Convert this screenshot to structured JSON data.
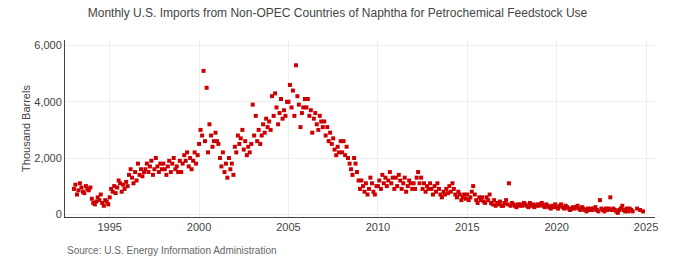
{
  "chart_data": {
    "type": "scatter",
    "title": "Monthly U.S. Imports from Non-OPEC Countries of Naphtha for Petrochemical Feedstock Use",
    "ylabel": "Thousand Barrels",
    "annotations": [
      "Source: U.S. Energy Information Administration"
    ],
    "color": "#cc0000",
    "marker": "square",
    "grid": true,
    "xlim": [
      1992.5,
      2025.5
    ],
    "ylim": [
      -100,
      6200
    ],
    "xticks": [
      1995,
      2000,
      2005,
      2010,
      2015,
      2020,
      2025
    ],
    "yticks": [
      0,
      {
        "value": 2000,
        "label": "2,000"
      },
      {
        "value": 4000,
        "label": "4,000"
      },
      {
        "value": 6000,
        "label": "6,000"
      }
    ],
    "x": [
      1993.0,
      1993.08,
      1993.17,
      1993.25,
      1993.33,
      1993.42,
      1993.5,
      1993.58,
      1993.67,
      1993.75,
      1993.83,
      1993.92,
      1994.0,
      1994.08,
      1994.17,
      1994.25,
      1994.33,
      1994.42,
      1994.5,
      1994.58,
      1994.67,
      1994.75,
      1994.83,
      1994.92,
      1995.0,
      1995.08,
      1995.17,
      1995.25,
      1995.33,
      1995.42,
      1995.5,
      1995.58,
      1995.67,
      1995.75,
      1995.83,
      1995.92,
      1996.0,
      1996.08,
      1996.17,
      1996.25,
      1996.33,
      1996.42,
      1996.5,
      1996.58,
      1996.67,
      1996.75,
      1996.83,
      1996.92,
      1997.0,
      1997.08,
      1997.17,
      1997.25,
      1997.33,
      1997.42,
      1997.5,
      1997.58,
      1997.67,
      1997.75,
      1997.83,
      1997.92,
      1998.0,
      1998.08,
      1998.17,
      1998.25,
      1998.33,
      1998.42,
      1998.5,
      1998.58,
      1998.67,
      1998.75,
      1998.83,
      1998.92,
      1999.0,
      1999.08,
      1999.17,
      1999.25,
      1999.33,
      1999.42,
      1999.5,
      1999.58,
      1999.67,
      1999.75,
      1999.83,
      1999.92,
      2000.0,
      2000.08,
      2000.17,
      2000.25,
      2000.33,
      2000.42,
      2000.5,
      2000.58,
      2000.67,
      2000.75,
      2000.83,
      2000.92,
      2001.0,
      2001.08,
      2001.17,
      2001.25,
      2001.33,
      2001.42,
      2001.5,
      2001.58,
      2001.67,
      2001.75,
      2001.83,
      2001.92,
      2002.0,
      2002.08,
      2002.17,
      2002.25,
      2002.33,
      2002.42,
      2002.5,
      2002.58,
      2002.67,
      2002.75,
      2002.83,
      2002.92,
      2003.0,
      2003.08,
      2003.17,
      2003.25,
      2003.33,
      2003.42,
      2003.5,
      2003.58,
      2003.67,
      2003.75,
      2003.83,
      2003.92,
      2004.0,
      2004.08,
      2004.17,
      2004.25,
      2004.33,
      2004.42,
      2004.5,
      2004.58,
      2004.67,
      2004.75,
      2004.83,
      2004.92,
      2005.0,
      2005.08,
      2005.17,
      2005.25,
      2005.33,
      2005.42,
      2005.5,
      2005.58,
      2005.67,
      2005.75,
      2005.83,
      2005.92,
      2006.0,
      2006.08,
      2006.17,
      2006.25,
      2006.33,
      2006.42,
      2006.5,
      2006.58,
      2006.67,
      2006.75,
      2006.83,
      2006.92,
      2007.0,
      2007.08,
      2007.17,
      2007.25,
      2007.33,
      2007.42,
      2007.5,
      2007.58,
      2007.67,
      2007.75,
      2007.83,
      2007.92,
      2008.0,
      2008.08,
      2008.17,
      2008.25,
      2008.33,
      2008.42,
      2008.5,
      2008.58,
      2008.67,
      2008.75,
      2008.83,
      2008.92,
      2009.0,
      2009.08,
      2009.17,
      2009.25,
      2009.33,
      2009.42,
      2009.5,
      2009.58,
      2009.67,
      2009.75,
      2009.83,
      2009.92,
      2010.0,
      2010.08,
      2010.17,
      2010.25,
      2010.33,
      2010.42,
      2010.5,
      2010.58,
      2010.67,
      2010.75,
      2010.83,
      2010.92,
      2011.0,
      2011.08,
      2011.17,
      2011.25,
      2011.33,
      2011.42,
      2011.5,
      2011.58,
      2011.67,
      2011.75,
      2011.83,
      2011.92,
      2012.0,
      2012.08,
      2012.17,
      2012.25,
      2012.33,
      2012.42,
      2012.5,
      2012.58,
      2012.67,
      2012.75,
      2012.83,
      2012.92,
      2013.0,
      2013.08,
      2013.17,
      2013.25,
      2013.33,
      2013.42,
      2013.5,
      2013.58,
      2013.67,
      2013.75,
      2013.83,
      2013.92,
      2014.0,
      2014.08,
      2014.17,
      2014.25,
      2014.33,
      2014.42,
      2014.5,
      2014.58,
      2014.67,
      2014.75,
      2014.83,
      2014.92,
      2015.0,
      2015.08,
      2015.17,
      2015.25,
      2015.33,
      2015.42,
      2015.5,
      2015.58,
      2015.67,
      2015.75,
      2015.83,
      2015.92,
      2016.0,
      2016.08,
      2016.17,
      2016.25,
      2016.33,
      2016.42,
      2016.5,
      2016.58,
      2016.67,
      2016.75,
      2016.83,
      2016.92,
      2017.0,
      2017.08,
      2017.17,
      2017.25,
      2017.33,
      2017.42,
      2017.5,
      2017.58,
      2017.67,
      2017.75,
      2017.83,
      2017.92,
      2018.0,
      2018.08,
      2018.17,
      2018.25,
      2018.33,
      2018.42,
      2018.5,
      2018.58,
      2018.67,
      2018.75,
      2018.83,
      2018.92,
      2019.0,
      2019.08,
      2019.17,
      2019.25,
      2019.33,
      2019.42,
      2019.5,
      2019.58,
      2019.67,
      2019.75,
      2019.83,
      2019.92,
      2020.0,
      2020.08,
      2020.17,
      2020.25,
      2020.33,
      2020.42,
      2020.5,
      2020.58,
      2020.67,
      2020.75,
      2020.83,
      2020.92,
      2021.0,
      2021.08,
      2021.17,
      2021.25,
      2021.33,
      2021.42,
      2021.5,
      2021.58,
      2021.67,
      2021.75,
      2021.83,
      2021.92,
      2022.0,
      2022.08,
      2022.17,
      2022.25,
      2022.33,
      2022.42,
      2022.5,
      2022.58,
      2022.67,
      2022.75,
      2022.83,
      2022.92,
      2023.0,
      2023.08,
      2023.17,
      2023.25,
      2023.33,
      2023.42,
      2023.5,
      2023.58,
      2023.67,
      2023.75,
      2023.83,
      2023.92,
      2024.0,
      2024.08,
      2024.17,
      2024.25,
      2024.5,
      2024.67,
      2024.83
    ],
    "values": [
      900,
      1050,
      700,
      850,
      1100,
      950,
      800,
      750,
      1000,
      900,
      850,
      950,
      550,
      400,
      350,
      450,
      600,
      500,
      700,
      400,
      300,
      500,
      450,
      350,
      600,
      900,
      800,
      1000,
      750,
      950,
      1200,
      1100,
      800,
      1050,
      900,
      1150,
      1000,
      1400,
      1600,
      1300,
      1100,
      1500,
      1200,
      1800,
      1400,
      1600,
      1350,
      1500,
      1600,
      1800,
      1500,
      1700,
      1900,
      1400,
      1600,
      2000,
      1700,
      1500,
      1800,
      1600,
      1800,
      1600,
      1400,
      1700,
      1900,
      1500,
      1800,
      2000,
      1600,
      1700,
      1500,
      1900,
      1500,
      1800,
      2100,
      1900,
      2200,
      1700,
      2000,
      1600,
      1900,
      2200,
      1800,
      2100,
      2500,
      3000,
      2800,
      5100,
      2600,
      4500,
      2200,
      3200,
      2800,
      2400,
      2600,
      2900,
      2600,
      2500,
      2000,
      1700,
      2200,
      1500,
      1800,
      1300,
      2000,
      1600,
      1800,
      1400,
      2400,
      2200,
      2800,
      2500,
      2700,
      3000,
      2300,
      2600,
      2100,
      2400,
      2200,
      2500,
      3900,
      2800,
      3500,
      2600,
      3000,
      2500,
      2800,
      3200,
      2900,
      3400,
      3100,
      3300,
      3000,
      4200,
      3500,
      4300,
      3800,
      3200,
      3600,
      4100,
      3400,
      3700,
      3500,
      4000,
      4000,
      4600,
      3800,
      4400,
      3500,
      5300,
      4200,
      3900,
      3100,
      3600,
      3800,
      4100,
      3800,
      4100,
      3500,
      3700,
      2900,
      3400,
      3600,
      3200,
      3000,
      3500,
      3300,
      3100,
      3300,
      2800,
      3100,
      2600,
      2900,
      2500,
      2700,
      2300,
      2100,
      2400,
      2200,
      2600,
      2200,
      2600,
      2100,
      2400,
      2000,
      1800,
      1600,
      1400,
      2000,
      1800,
      1500,
      1200,
      900,
      1200,
      1000,
      800,
      1100,
      700,
      900,
      1300,
      1100,
      800,
      700,
      1000,
      1000,
      1200,
      900,
      1400,
      1100,
      1300,
      1000,
      1200,
      1500,
      1100,
      1300,
      900,
      1300,
      1000,
      1400,
      1200,
      900,
      1100,
      1300,
      800,
      1000,
      1200,
      1100,
      900,
      1100,
      900,
      1300,
      1500,
      1100,
      1300,
      900,
      1100,
      800,
      1000,
      900,
      1100,
      900,
      700,
      1000,
      800,
      1100,
      900,
      700,
      600,
      800,
      700,
      900,
      750,
      1000,
      800,
      1100,
      900,
      700,
      600,
      800,
      700,
      500,
      600,
      700,
      550,
      700,
      500,
      600,
      800,
      1000,
      700,
      500,
      400,
      600,
      500,
      600,
      450,
      400,
      600,
      500,
      700,
      400,
      350,
      500,
      300,
      400,
      350,
      450,
      300,
      300,
      400,
      500,
      350,
      1100,
      300,
      400,
      350,
      300,
      250,
      350,
      300,
      350,
      300,
      400,
      350,
      300,
      250,
      400,
      300,
      350,
      250,
      300,
      350,
      300,
      350,
      400,
      300,
      250,
      350,
      300,
      250,
      200,
      300,
      250,
      350,
      250,
      200,
      300,
      350,
      250,
      200,
      300,
      250,
      200,
      150,
      200,
      250,
      200,
      250,
      300,
      200,
      150,
      250,
      200,
      150,
      100,
      200,
      150,
      200,
      150,
      200,
      250,
      150,
      100,
      500,
      200,
      150,
      100,
      200,
      150,
      200,
      600,
      150,
      200,
      150,
      100,
      50,
      150,
      200,
      300,
      150,
      100,
      200,
      100,
      200,
      150,
      100,
      200,
      150,
      100
    ]
  }
}
